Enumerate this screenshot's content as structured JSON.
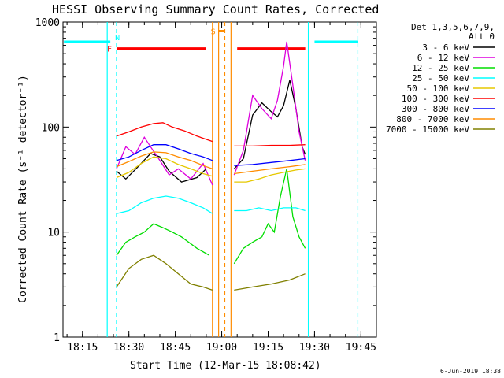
{
  "chart_data": {
    "type": "line",
    "title": "HESSI Observing Summary Count Rates, Corrected",
    "xlabel": "Start Time (12-Mar-15 18:08:42)",
    "ylabel": "Corrected Count Rate (s⁻¹ detector⁻¹)",
    "y_scale": "log",
    "ylim": [
      1,
      1000
    ],
    "y_ticks": [
      "1",
      "10",
      "100",
      "1000"
    ],
    "x_range": [
      "18:08:42",
      "19:50:00"
    ],
    "x_ticks": [
      "18:15",
      "18:30",
      "18:45",
      "19:00",
      "19:15",
      "19:30",
      "19:45"
    ],
    "legend": {
      "header": [
        "Det 1,3,5,6,7,9,",
        "Att 0"
      ],
      "placement": "right"
    },
    "footer": "6-Jun-2019 18:38",
    "series": [
      {
        "name": "3 - 6 keV",
        "color": "#000000",
        "x": [
          "18:26",
          "18:29",
          "18:33",
          "18:37",
          "18:40",
          "18:43",
          "18:47",
          "18:52",
          "18:55",
          "19:04",
          "19:07",
          "19:10",
          "19:13",
          "19:16",
          "19:18",
          "19:20",
          "19:22",
          "19:24",
          "19:26",
          "19:27"
        ],
        "y": [
          38,
          32,
          42,
          56,
          52,
          38,
          30,
          33,
          40,
          40,
          50,
          130,
          170,
          140,
          125,
          160,
          280,
          150,
          65,
          55
        ]
      },
      {
        "name": "6 - 12 keV",
        "color": "#dd00dd",
        "x": [
          "18:26",
          "18:29",
          "18:32",
          "18:35",
          "18:37",
          "18:40",
          "18:43",
          "18:46",
          "18:50",
          "18:54",
          "18:57",
          "19:04",
          "19:07",
          "19:10",
          "19:13",
          "19:16",
          "19:18",
          "19:20",
          "19:21",
          "19:23",
          "19:25",
          "19:27"
        ],
        "y": [
          40,
          65,
          55,
          80,
          65,
          48,
          35,
          40,
          32,
          45,
          28,
          35,
          60,
          200,
          150,
          120,
          180,
          380,
          650,
          250,
          90,
          48
        ]
      },
      {
        "name": "12 - 25 keV",
        "color": "#00dd00",
        "x": [
          "18:26",
          "18:29",
          "18:32",
          "18:35",
          "18:38",
          "18:41",
          "18:44",
          "18:47",
          "18:52",
          "18:56",
          "19:04",
          "19:07",
          "19:10",
          "19:13",
          "19:15",
          "19:17",
          "19:19",
          "19:21",
          "19:23",
          "19:25",
          "19:27"
        ],
        "y": [
          6,
          8,
          9,
          10,
          12,
          11,
          10,
          9,
          7,
          6,
          5,
          7,
          8,
          9,
          12,
          10,
          22,
          40,
          14,
          9,
          7
        ]
      },
      {
        "name": "25 - 50 keV",
        "color": "#00ffff",
        "x": [
          "18:26",
          "18:30",
          "18:34",
          "18:38",
          "18:42",
          "18:46",
          "18:50",
          "18:54",
          "18:57",
          "19:04",
          "19:08",
          "19:12",
          "19:16",
          "19:20",
          "19:24",
          "19:27"
        ],
        "y": [
          15,
          16,
          19,
          21,
          22,
          21,
          19,
          17,
          15,
          16,
          16,
          17,
          16,
          17,
          17,
          16
        ]
      },
      {
        "name": "50 - 100 keV",
        "color": "#e6c800",
        "x": [
          "18:26",
          "18:30",
          "18:34",
          "18:38",
          "18:42",
          "18:46",
          "18:50",
          "18:54",
          "18:57",
          "19:04",
          "19:08",
          "19:12",
          "19:16",
          "19:20",
          "19:24",
          "19:27"
        ],
        "y": [
          33,
          37,
          45,
          52,
          50,
          44,
          40,
          36,
          34,
          30,
          30,
          32,
          35,
          37,
          39,
          40
        ]
      },
      {
        "name": "100 - 300 keV",
        "color": "#ff0000",
        "x": [
          "18:26",
          "18:30",
          "18:34",
          "18:38",
          "18:41",
          "18:44",
          "18:48",
          "18:52",
          "18:57",
          "19:04",
          "19:10",
          "19:16",
          "19:22",
          "19:27"
        ],
        "y": [
          82,
          90,
          100,
          108,
          110,
          100,
          92,
          82,
          73,
          66,
          66,
          67,
          67,
          68
        ]
      },
      {
        "name": "300 - 800 keV",
        "color": "#0000ff",
        "x": [
          "18:26",
          "18:30",
          "18:34",
          "18:38",
          "18:42",
          "18:46",
          "18:50",
          "18:54",
          "18:57",
          "19:04",
          "19:10",
          "19:16",
          "19:22",
          "19:27"
        ],
        "y": [
          48,
          52,
          60,
          68,
          68,
          62,
          56,
          52,
          48,
          43,
          44,
          46,
          48,
          50
        ]
      },
      {
        "name": "800 - 7000 keV",
        "color": "#ff8c00",
        "x": [
          "18:26",
          "18:30",
          "18:34",
          "18:38",
          "18:42",
          "18:46",
          "18:50",
          "18:54",
          "18:57",
          "19:04",
          "19:10",
          "19:16",
          "19:22",
          "19:27"
        ],
        "y": [
          42,
          47,
          53,
          58,
          57,
          52,
          48,
          43,
          40,
          36,
          38,
          40,
          42,
          44
        ]
      },
      {
        "name": "7000 - 15000 keV",
        "color": "#808000",
        "x": [
          "18:26",
          "18:30",
          "18:34",
          "18:38",
          "18:42",
          "18:46",
          "18:50",
          "18:54",
          "18:57",
          "19:04",
          "19:10",
          "19:16",
          "19:22",
          "19:27"
        ],
        "y": [
          3,
          4.5,
          5.5,
          6,
          5,
          4,
          3.2,
          3,
          2.8,
          2.8,
          3,
          3.2,
          3.5,
          4
        ]
      }
    ],
    "flags": [
      {
        "label": "N",
        "color": "#00ffff",
        "intervals": [
          [
            "18:09",
            "18:24"
          ],
          [
            "19:30",
            "19:44"
          ]
        ],
        "level": 650
      },
      {
        "label": "F",
        "color": "#ff0000",
        "intervals": [
          [
            "18:26",
            "18:55"
          ],
          [
            "19:05",
            "19:27"
          ]
        ],
        "level": 560
      },
      {
        "label": "S",
        "color": "#ff8c00",
        "intervals": [
          [
            "18:59",
            "19:01"
          ]
        ],
        "level": 820
      }
    ],
    "markers": [
      {
        "color": "#00ffff",
        "style": "solid",
        "x": [
          "18:23",
          "19:28"
        ]
      },
      {
        "color": "#00ffff",
        "style": "dashed",
        "x": [
          "18:26",
          "19:44"
        ]
      },
      {
        "color": "#ff8c00",
        "style": "solid",
        "x": [
          "18:57",
          "18:59",
          "19:03"
        ]
      },
      {
        "color": "#ff8c00",
        "style": "dashed",
        "x": [
          "19:01"
        ]
      }
    ]
  }
}
